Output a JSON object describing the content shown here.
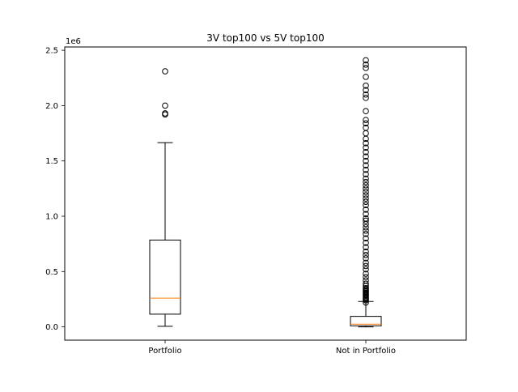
{
  "chart_data": {
    "type": "box",
    "title": "3V top100 vs 5V top100",
    "xlabel": "",
    "ylabel": "",
    "y_offset_label": "1e6",
    "ylim": [
      -0.12,
      2.53
    ],
    "yticks": [
      0.0,
      0.5,
      1.0,
      1.5,
      2.0,
      2.5
    ],
    "ytick_labels": [
      "0.0",
      "0.5",
      "1.0",
      "1.5",
      "2.0",
      "2.5"
    ],
    "categories": [
      "Portfolio",
      "Not in Portfolio"
    ],
    "boxes": [
      {
        "name": "Portfolio",
        "whislo": 0.005,
        "q1": 0.115,
        "med": 0.26,
        "q3": 0.785,
        "whishi": 1.665,
        "fliers": [
          1.92,
          1.93,
          2.0,
          2.31
        ]
      },
      {
        "name": "Not in Portfolio",
        "whislo": 0.0,
        "q1": 0.01,
        "med": 0.025,
        "q3": 0.095,
        "whishi": 0.23,
        "fliers": [
          0.22,
          0.24,
          0.25,
          0.26,
          0.27,
          0.28,
          0.29,
          0.3,
          0.31,
          0.32,
          0.33,
          0.34,
          0.35,
          0.37,
          0.39,
          0.42,
          0.45,
          0.48,
          0.52,
          0.55,
          0.58,
          0.62,
          0.65,
          0.68,
          0.72,
          0.76,
          0.8,
          0.84,
          0.87,
          0.9,
          0.93,
          0.96,
          0.98,
          1.02,
          1.06,
          1.1,
          1.13,
          1.16,
          1.19,
          1.22,
          1.25,
          1.28,
          1.31,
          1.34,
          1.38,
          1.42,
          1.46,
          1.5,
          1.54,
          1.58,
          1.62,
          1.66,
          1.7,
          1.75,
          1.8,
          1.84,
          1.87,
          1.95,
          2.07,
          2.1,
          2.14,
          2.18,
          2.26,
          2.34,
          2.37,
          2.41
        ]
      }
    ],
    "colors": {
      "box": "#000000",
      "median": "#ff7f0e",
      "flier": "#000000"
    },
    "grid": false
  }
}
